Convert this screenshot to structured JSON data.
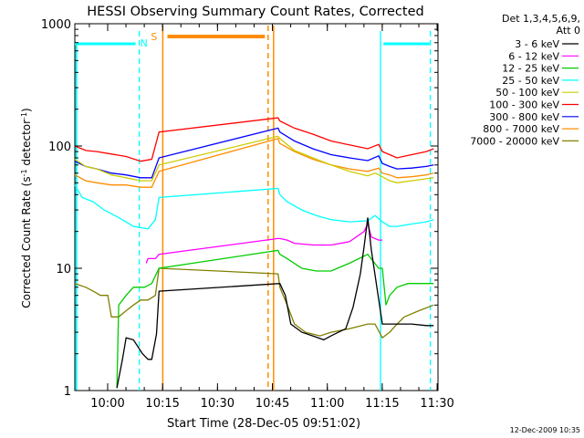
{
  "chart_data": {
    "type": "line",
    "title": "HESSI Observing Summary Count Rates, Corrected",
    "xlabel": "Start Time (28-Dec-05 09:51:02)",
    "ylabel_parts": [
      "Corrected Count Rate (s",
      "-1",
      " detector",
      "-1",
      ")"
    ],
    "yscale": "log",
    "ylim": [
      1,
      1000
    ],
    "xlim_min": [
      0,
      99.2
    ],
    "x_ticks": [
      {
        "m": 8.97,
        "label": "10:00"
      },
      {
        "m": 23.97,
        "label": "10:15"
      },
      {
        "m": 38.97,
        "label": "10:30"
      },
      {
        "m": 53.97,
        "label": "10:45"
      },
      {
        "m": 68.97,
        "label": "11:00"
      },
      {
        "m": 83.97,
        "label": "11:15"
      },
      {
        "m": 98.97,
        "label": "11:30"
      }
    ],
    "y_ticks": [
      {
        "v": 1,
        "label": "1"
      },
      {
        "v": 10,
        "label": "10"
      },
      {
        "v": 100,
        "label": "100"
      },
      {
        "v": 1000,
        "label": "1000"
      }
    ],
    "legend": {
      "header1": "Det 1,3,4,5,6,9,",
      "header2": "Att 0",
      "placement": "right"
    },
    "series": [
      {
        "name": "3 - 6 keV",
        "color": "#000000",
        "x": [
          11.5,
          13,
          14,
          16,
          18.5,
          20,
          21,
          22.3,
          23,
          56,
          57.5,
          59,
          62,
          65,
          68,
          70,
          72,
          74,
          76,
          78,
          79,
          80,
          81,
          84,
          88,
          92,
          96,
          98
        ],
        "y": [
          1.05,
          1.8,
          2.7,
          2.6,
          2.0,
          1.8,
          1.8,
          2.9,
          6.5,
          7.5,
          6,
          3.5,
          3,
          2.8,
          2.6,
          2.8,
          3,
          3.2,
          4.8,
          9,
          15,
          26,
          14,
          3.5,
          3.5,
          3.5,
          3.4,
          3.4
        ]
      },
      {
        "name": "6 - 12 keV",
        "color": "#ff00ff",
        "x": [
          19.5,
          20,
          22,
          23,
          55.5,
          56,
          58,
          60,
          65,
          70,
          75,
          79,
          80,
          81,
          83,
          84
        ],
        "y": [
          11,
          12,
          12,
          13,
          17.5,
          17.5,
          17,
          16,
          15.5,
          15.5,
          16.5,
          20,
          23,
          18,
          17,
          17
        ]
      },
      {
        "name": "12 - 25 keV",
        "color": "#00cc00",
        "x": [
          11.5,
          12,
          14,
          16,
          19,
          21,
          23,
          55.5,
          56,
          58,
          62,
          66,
          70,
          75,
          80,
          83,
          84,
          85,
          86,
          88,
          91,
          94,
          97,
          98
        ],
        "y": [
          1.05,
          5,
          6,
          7,
          7,
          7.5,
          10,
          14,
          13,
          12,
          10,
          9.5,
          9.5,
          11,
          13,
          10,
          10,
          5,
          6,
          7,
          7.5,
          7.5,
          7.5,
          7.5
        ]
      },
      {
        "name": "25 - 50 keV",
        "color": "#00ffff",
        "x": [
          0,
          2,
          5,
          8,
          12,
          16,
          20,
          22,
          23,
          55.5,
          56,
          58,
          62,
          66,
          70,
          75,
          80,
          82,
          84,
          86,
          88,
          92,
          96,
          98
        ],
        "y": [
          48,
          38,
          35,
          30,
          26,
          22,
          21,
          25,
          38,
          45,
          40,
          35,
          30,
          27,
          25,
          24,
          24.5,
          27,
          24,
          22,
          22,
          23,
          24,
          25
        ]
      },
      {
        "name": "50 - 100 keV",
        "color": "#cccc00",
        "x": [
          0,
          3,
          6,
          10,
          14,
          18,
          21,
          23,
          55.5,
          56,
          60,
          65,
          70,
          75,
          80,
          82,
          84,
          86,
          88,
          92,
          96,
          98
        ],
        "y": [
          78,
          68,
          65,
          58,
          55,
          52,
          52,
          70,
          120,
          115,
          92,
          80,
          70,
          62,
          57,
          60,
          56,
          52,
          50,
          52,
          54,
          55
        ]
      },
      {
        "name": "100 - 300 keV",
        "color": "#ff0000",
        "x": [
          0,
          3,
          6,
          10,
          14,
          18,
          21,
          23,
          55.5,
          56,
          60,
          65,
          70,
          75,
          80,
          83,
          84,
          86,
          88,
          92,
          96,
          98
        ],
        "y": [
          100,
          92,
          90,
          86,
          82,
          75,
          78,
          130,
          170,
          160,
          140,
          125,
          110,
          102,
          95,
          103,
          90,
          85,
          80,
          85,
          90,
          95
        ]
      },
      {
        "name": "300 - 800 keV",
        "color": "#0000ff",
        "x": [
          0,
          3,
          6,
          10,
          14,
          18,
          21,
          23,
          55.5,
          56,
          60,
          65,
          70,
          75,
          80,
          83,
          84,
          86,
          88,
          92,
          96,
          98
        ],
        "y": [
          75,
          68,
          65,
          60,
          58,
          55,
          55,
          80,
          140,
          130,
          110,
          95,
          85,
          80,
          76,
          83,
          72,
          68,
          65,
          66,
          68,
          70
        ]
      },
      {
        "name": "800 - 7000 keV",
        "color": "#ff8c00",
        "x": [
          0,
          3,
          6,
          10,
          14,
          18,
          21,
          23,
          55.5,
          56,
          60,
          65,
          70,
          75,
          80,
          83,
          84,
          86,
          88,
          92,
          96,
          98
        ],
        "y": [
          58,
          52,
          50,
          48,
          48,
          46,
          46,
          62,
          115,
          105,
          90,
          78,
          70,
          65,
          62,
          66,
          60,
          58,
          55,
          56,
          58,
          60
        ]
      },
      {
        "name": "7000 - 20000 keV",
        "color": "#808000",
        "x": [
          0,
          3,
          5,
          7,
          9,
          10,
          12,
          14,
          16,
          18,
          20,
          22,
          23,
          55.5,
          56,
          58,
          60,
          63,
          67,
          70,
          75,
          80,
          82,
          84,
          86,
          88,
          90,
          94,
          98
        ],
        "y": [
          7.5,
          7,
          6.5,
          6,
          6,
          4,
          4,
          4.5,
          5,
          5.5,
          5.5,
          6,
          10,
          9,
          7,
          5,
          3.5,
          3,
          2.8,
          3,
          3.2,
          3.5,
          3.5,
          2.7,
          3,
          3.5,
          4,
          4.5,
          5
        ]
      }
    ],
    "attenuator_markers": [
      {
        "type": "solid",
        "color": "#ff8c00",
        "m": 24.03,
        "label": "S"
      },
      {
        "type": "dashed",
        "color": "#ff8c00",
        "m": 52.8
      },
      {
        "type": "solid",
        "color": "#ff8c00",
        "m": 54.3
      }
    ],
    "attenuator_bars": [
      {
        "color": "#ff8c00",
        "m1": 25.3,
        "m2": 51.9
      }
    ],
    "night_markers": [
      {
        "type": "dashed",
        "color": "#00ffff",
        "m": 17.6,
        "label": "N"
      },
      {
        "type": "solid",
        "color": "#00ffff",
        "m": 83.5
      },
      {
        "type": "dashed",
        "color": "#00ffff",
        "m": 97.1
      }
    ],
    "night_bars": [
      {
        "color": "#00ffff",
        "m1": 0,
        "m2": 16.6
      },
      {
        "color": "#00ffff",
        "m1": 84.3,
        "m2": 96.9
      }
    ],
    "night_edge_lines": [
      {
        "color": "#00ffff",
        "m": 0.4
      }
    ],
    "footer_time": "12-Dec-2009 10:35"
  }
}
